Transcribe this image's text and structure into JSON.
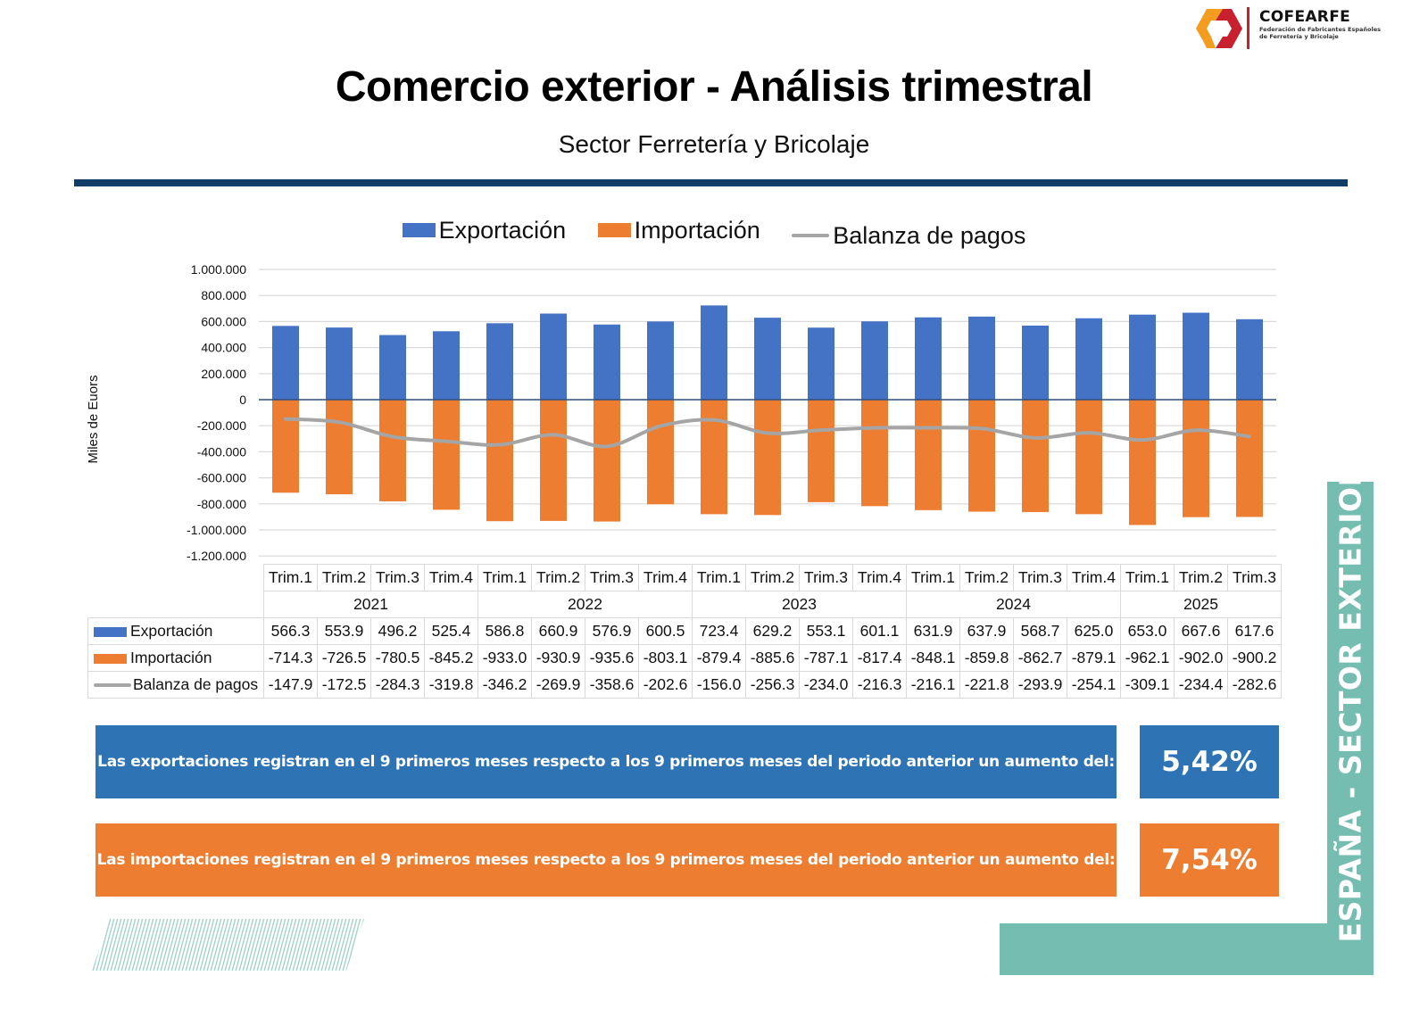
{
  "logo": {
    "brand": "COFEARFE",
    "federation_line1": "Federación de Fabricantes Españoles",
    "federation_line2": "de Ferretería y Bricolaje",
    "colors": {
      "orange": "#f39c1f",
      "red": "#c8202f"
    }
  },
  "header": {
    "title": "Comercio exterior - Análisis trimestral",
    "subtitle": "Sector Ferretería y Bricolaje"
  },
  "chart_data": {
    "type": "bar",
    "title": "",
    "xlabel": "",
    "ylabel": "Miles de Euors",
    "ylim": [
      -1200000,
      1000000
    ],
    "yticks": [
      1000000,
      800000,
      600000,
      400000,
      200000,
      0,
      -200000,
      -400000,
      -600000,
      -800000,
      -1000000,
      -1200000
    ],
    "ytick_labels": [
      "1.000.000",
      "800.000",
      "600.000",
      "400.000",
      "200.000",
      "0",
      "-200.000",
      "-400.000",
      "-600.000",
      "-800.000",
      "-1.000.000",
      "-1.200.000"
    ],
    "grid": true,
    "legend_position": "top-center",
    "value_multiplier": 1000,
    "years": [
      {
        "label": "2021",
        "span": 4
      },
      {
        "label": "2022",
        "span": 4
      },
      {
        "label": "2023",
        "span": 4
      },
      {
        "label": "2024",
        "span": 4
      },
      {
        "label": "2025",
        "span": 3
      }
    ],
    "categories": [
      "Trim.1",
      "Trim.2",
      "Trim.3",
      "Trim.4",
      "Trim.1",
      "Trim.2",
      "Trim.3",
      "Trim.4",
      "Trim.1",
      "Trim.2",
      "Trim.3",
      "Trim.4",
      "Trim.1",
      "Trim.2",
      "Trim.3",
      "Trim.4",
      "Trim.1",
      "Trim.2",
      "Trim.3"
    ],
    "series": [
      {
        "name": "Exportación",
        "kind": "bar",
        "color": "#4472c4",
        "values": [
          "566.3",
          "553.9",
          "496.2",
          "525.4",
          "586.8",
          "660.9",
          "576.9",
          "600.5",
          "723.4",
          "629.2",
          "553.1",
          "601.1",
          "631.9",
          "637.9",
          "568.7",
          "625.0",
          "653.0",
          "667.6",
          "617.6"
        ]
      },
      {
        "name": "Importación",
        "kind": "bar",
        "color": "#ed7d31",
        "values": [
          "-714.3",
          "-726.5",
          "-780.5",
          "-845.2",
          "-933.0",
          "-930.9",
          "-935.6",
          "-803.1",
          "-879.4",
          "-885.6",
          "-787.1",
          "-817.4",
          "-848.1",
          "-859.8",
          "-862.7",
          "-879.1",
          "-962.1",
          "-902.0",
          "-900.2"
        ]
      },
      {
        "name": "Balanza de pagos",
        "kind": "line",
        "color": "#a5a5a5",
        "values": [
          "-147.9",
          "-172.5",
          "-284.3",
          "-319.8",
          "-346.2",
          "-269.9",
          "-358.6",
          "-202.6",
          "-156.0",
          "-256.3",
          "-234.0",
          "-216.3",
          "-216.1",
          "-221.8",
          "-293.9",
          "-254.1",
          "-309.1",
          "-234.4",
          "-282.6"
        ]
      }
    ]
  },
  "summary": {
    "exports_text": "Las exportaciones registran en el 9 primeros meses respecto a los 9 primeros meses del periodo anterior un aumento del:",
    "exports_pct": "5,42%",
    "imports_text": "Las importaciones registran en el 9 primeros meses respecto a los 9 primeros meses del periodo anterior un aumento del:",
    "imports_pct": "7,54%"
  },
  "side_banner": "ESPAÑA - SECTOR EXTERIOR",
  "colors": {
    "rule": "#0f3d66",
    "box_blue": "#2e74b5",
    "box_orange": "#ed7d31",
    "teal": "#74bdb0"
  }
}
